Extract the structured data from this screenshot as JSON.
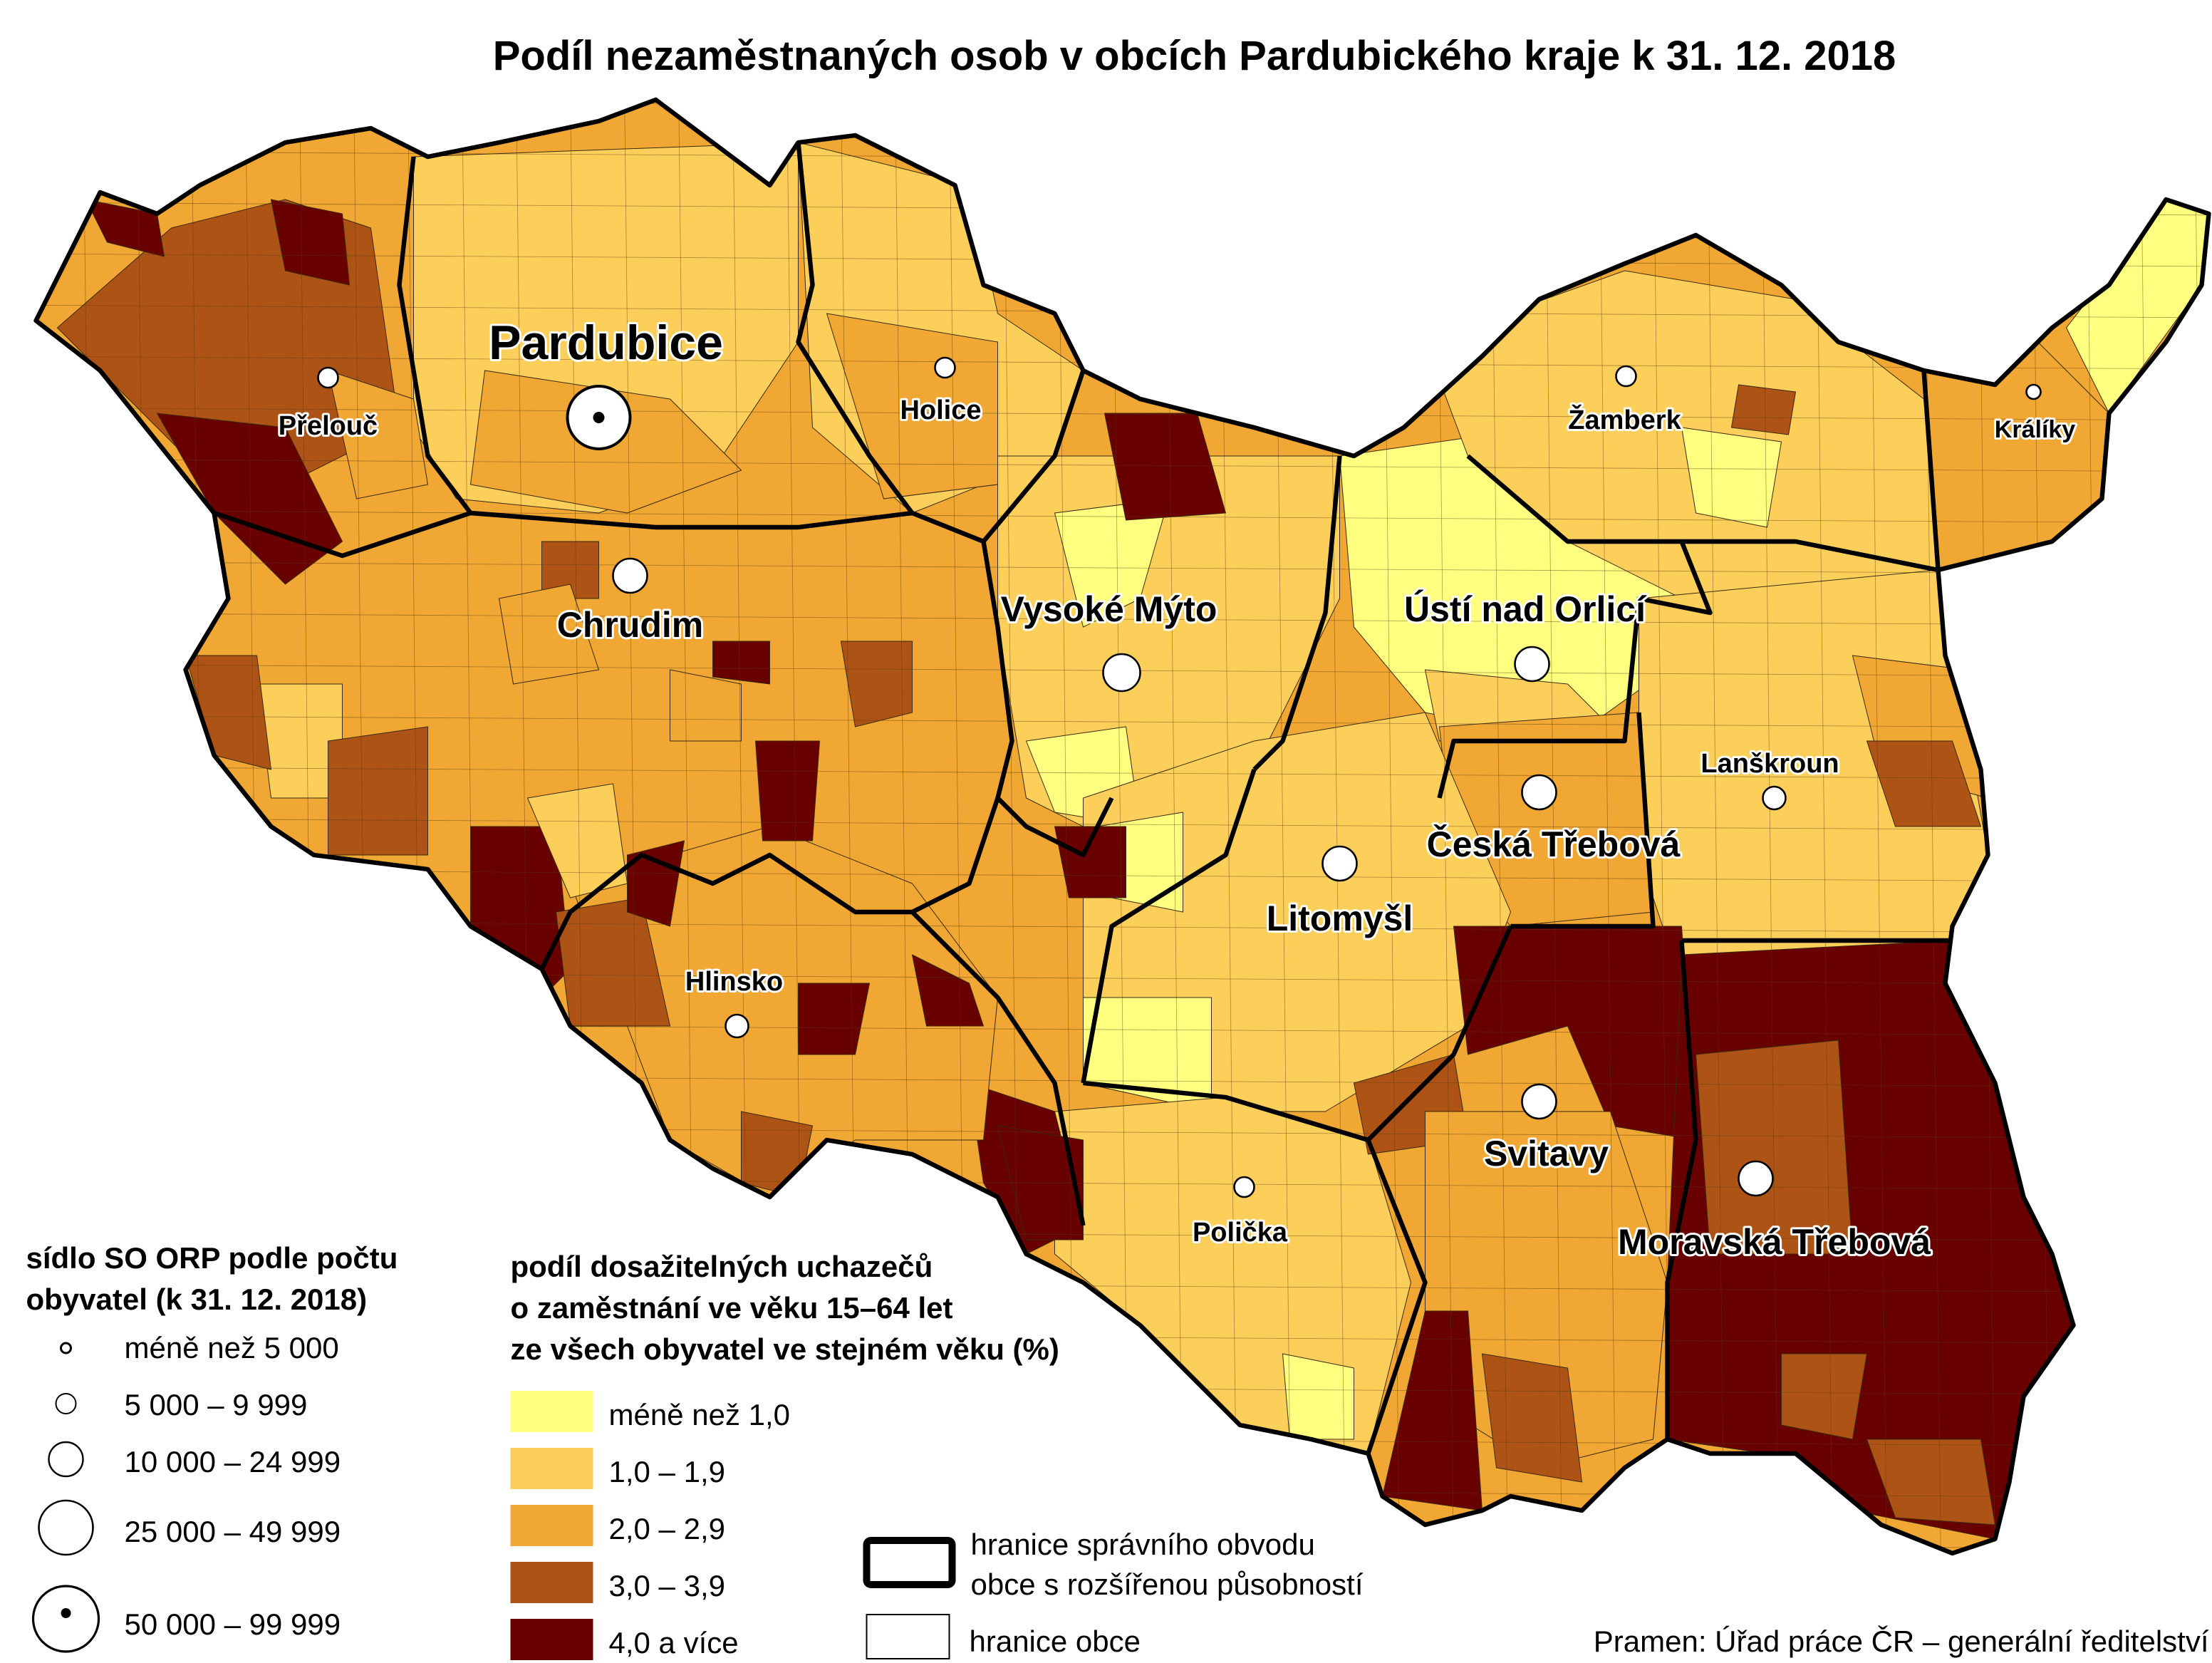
{
  "title": "Podíl nezaměstnaných osob v obcích Pardubického kraje k 31. 12. 2018",
  "colors": {
    "class1": "#FFFF80",
    "class2": "#FCCF5B",
    "class3": "#F0A733",
    "class4": "#AD5316",
    "class5": "#690000",
    "border": "#000000"
  },
  "cities": [
    {
      "name": "Pardubice",
      "size_class": "50 000 – 99 999"
    },
    {
      "name": "Přelouč",
      "size_class": "5 000 – 9 999"
    },
    {
      "name": "Holice",
      "size_class": "5 000 – 9 999"
    },
    {
      "name": "Chrudim",
      "size_class": "10 000 – 24 999"
    },
    {
      "name": "Vysoké Mýto",
      "size_class": "10 000 – 24 999"
    },
    {
      "name": "Ústí nad Orlicí",
      "size_class": "10 000 – 24 999"
    },
    {
      "name": "Žamberk",
      "size_class": "5 000 – 9 999"
    },
    {
      "name": "Králíky",
      "size_class": "méně než 5 000"
    },
    {
      "name": "Lanškroun",
      "size_class": "5 000 – 9 999"
    },
    {
      "name": "Česká Třebová",
      "size_class": "10 000 – 24 999"
    },
    {
      "name": "Litomyšl",
      "size_class": "10 000 – 24 999"
    },
    {
      "name": "Hlinsko",
      "size_class": "5 000 – 9 999"
    },
    {
      "name": "Svitavy",
      "size_class": "10 000 – 24 999"
    },
    {
      "name": "Polička",
      "size_class": "5 000 – 9 999"
    },
    {
      "name": "Moravská Třebová",
      "size_class": "10 000 – 24 999"
    }
  ],
  "legend_size": {
    "title_line1": "sídlo SO ORP podle počtu",
    "title_line2": "obyvatel (k 31. 12. 2018)",
    "items": [
      "méně než 5 000",
      "5 000 – 9 999",
      "10 000 – 24 999",
      "25 000 – 49 999",
      "50 000 – 99 999"
    ]
  },
  "legend_share": {
    "title_line1": "podíl dosažitelných uchazečů",
    "title_line2": "o zaměstnání ve věku 15–64 let",
    "title_line3": "ze všech obyvatel ve stejném věku (%)",
    "items": [
      "méně než 1,0",
      "1,0 – 1,9",
      "2,0 – 2,9",
      "3,0 – 3,9",
      "4,0 a více"
    ]
  },
  "legend_borders": {
    "orp_line1": "hranice správního obvodu",
    "orp_line2": "obce s rozšířenou působností",
    "municipality": "hranice obce"
  },
  "source": "Pramen: Úřad práce ČR – generální ředitelství"
}
